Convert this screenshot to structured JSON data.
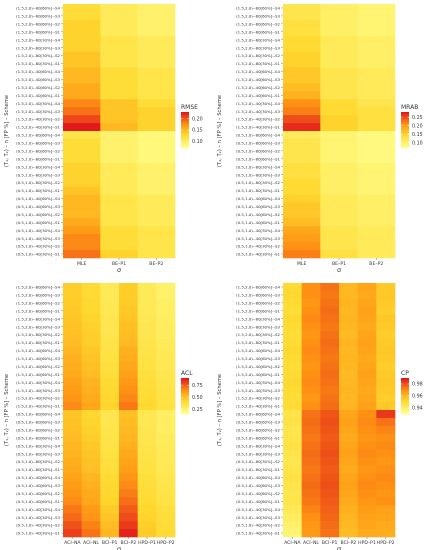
{
  "rows": [
    "(1.5,2.0)--80[60%]--S4",
    "(1.5,2.0)--80[60%]--S3",
    "(1.5,2.0)--80[60%]--S2",
    "(1.5,2.0)--80[60%]--S1",
    "(1.5,2.0)--80[30%]--S4",
    "(1.5,2.0)--80[30%]--S3",
    "(1.5,2.0)--80[30%]--S2",
    "(1.5,2.0)--80[30%]--S1",
    "(1.5,2.0)--40[60%]--S4",
    "(1.5,2.0)--40[60%]--S3",
    "(1.5,2.0)--40[60%]--S2",
    "(1.5,2.0)--40[60%]--S1",
    "(1.5,2.0)--40[30%]--S4",
    "(1.5,2.0)--40[30%]--S3",
    "(1.5,2.0)--40[30%]--S2",
    "(1.5,2.0)--40[30%]--S1",
    "(0.5,1.0)--80[60%]--S4",
    "(0.5,1.0)--80[60%]--S3",
    "(0.5,1.0)--80[60%]--S2",
    "(0.5,1.0)--80[60%]--S1",
    "(0.5,1.0)--80[30%]--S4",
    "(0.5,1.0)--80[30%]--S3",
    "(0.5,1.0)--80[30%]--S2",
    "(0.5,1.0)--80[30%]--S1",
    "(0.5,1.0)--40[60%]--S4",
    "(0.5,1.0)--40[60%]--S3",
    "(0.5,1.0)--40[60%]--S2",
    "(0.5,1.0)--40[60%]--S1",
    "(0.5,1.0)--40[30%]--S4",
    "(0.5,1.0)--40[30%]--S3",
    "(0.5,1.0)--40[30%]--S2",
    "(0.5,1.0)--40[30%]--S1"
  ],
  "chart_data": [
    {
      "type": "heatmap",
      "xlabel": "σ",
      "ylabel": "(T₁, T₂) – n [FP %] – Scheme",
      "categories": [
        "MLE",
        "BE–P1",
        "BE–P2"
      ],
      "legend": {
        "title": "RMSE",
        "ticks": [
          0.1,
          0.15,
          0.2
        ],
        "range": [
          0.07,
          0.23
        ],
        "placement": "right"
      },
      "values": [
        [
          0.12,
          0.1,
          0.09
        ],
        [
          0.12,
          0.1,
          0.09
        ],
        [
          0.13,
          0.1,
          0.09
        ],
        [
          0.13,
          0.1,
          0.09
        ],
        [
          0.13,
          0.11,
          0.1
        ],
        [
          0.13,
          0.11,
          0.1
        ],
        [
          0.14,
          0.11,
          0.1
        ],
        [
          0.14,
          0.11,
          0.1
        ],
        [
          0.15,
          0.12,
          0.11
        ],
        [
          0.15,
          0.12,
          0.11
        ],
        [
          0.16,
          0.12,
          0.11
        ],
        [
          0.16,
          0.12,
          0.11
        ],
        [
          0.18,
          0.14,
          0.12
        ],
        [
          0.19,
          0.14,
          0.13
        ],
        [
          0.21,
          0.14,
          0.13
        ],
        [
          0.23,
          0.15,
          0.13
        ],
        [
          0.11,
          0.09,
          0.08
        ],
        [
          0.12,
          0.09,
          0.08
        ],
        [
          0.12,
          0.09,
          0.08
        ],
        [
          0.12,
          0.09,
          0.08
        ],
        [
          0.13,
          0.1,
          0.09
        ],
        [
          0.13,
          0.1,
          0.09
        ],
        [
          0.13,
          0.1,
          0.09
        ],
        [
          0.14,
          0.1,
          0.09
        ],
        [
          0.15,
          0.11,
          0.1
        ],
        [
          0.15,
          0.11,
          0.1
        ],
        [
          0.15,
          0.11,
          0.1
        ],
        [
          0.16,
          0.11,
          0.1
        ],
        [
          0.17,
          0.12,
          0.11
        ],
        [
          0.18,
          0.12,
          0.11
        ],
        [
          0.18,
          0.12,
          0.11
        ],
        [
          0.19,
          0.13,
          0.11
        ]
      ]
    },
    {
      "type": "heatmap",
      "xlabel": "σ",
      "ylabel": "(T₁, T₂) – n [FP %] – Scheme",
      "categories": [
        "MLE",
        "BE–P1",
        "BE–P2"
      ],
      "legend": {
        "title": "MRAB",
        "ticks": [
          0.1,
          0.15,
          0.2,
          0.25
        ],
        "range": [
          0.07,
          0.28
        ],
        "placement": "right"
      },
      "values": [
        [
          0.12,
          0.1,
          0.09
        ],
        [
          0.12,
          0.1,
          0.09
        ],
        [
          0.13,
          0.1,
          0.09
        ],
        [
          0.13,
          0.1,
          0.09
        ],
        [
          0.14,
          0.11,
          0.1
        ],
        [
          0.14,
          0.11,
          0.1
        ],
        [
          0.15,
          0.11,
          0.1
        ],
        [
          0.15,
          0.11,
          0.1
        ],
        [
          0.16,
          0.12,
          0.11
        ],
        [
          0.16,
          0.12,
          0.11
        ],
        [
          0.17,
          0.12,
          0.11
        ],
        [
          0.18,
          0.12,
          0.11
        ],
        [
          0.21,
          0.14,
          0.12
        ],
        [
          0.22,
          0.14,
          0.13
        ],
        [
          0.25,
          0.15,
          0.13
        ],
        [
          0.27,
          0.15,
          0.13
        ],
        [
          0.11,
          0.09,
          0.08
        ],
        [
          0.12,
          0.09,
          0.08
        ],
        [
          0.12,
          0.09,
          0.08
        ],
        [
          0.12,
          0.09,
          0.08
        ],
        [
          0.13,
          0.1,
          0.09
        ],
        [
          0.13,
          0.1,
          0.09
        ],
        [
          0.14,
          0.1,
          0.09
        ],
        [
          0.14,
          0.1,
          0.09
        ],
        [
          0.15,
          0.11,
          0.1
        ],
        [
          0.16,
          0.11,
          0.1
        ],
        [
          0.16,
          0.11,
          0.1
        ],
        [
          0.17,
          0.11,
          0.1
        ],
        [
          0.19,
          0.12,
          0.11
        ],
        [
          0.2,
          0.12,
          0.11
        ],
        [
          0.21,
          0.12,
          0.11
        ],
        [
          0.22,
          0.13,
          0.11
        ]
      ]
    },
    {
      "type": "heatmap",
      "xlabel": "σ",
      "ylabel": "(T₁, T₂) – n [FP %] – Scheme",
      "categories": [
        "ACI–NA",
        "ACI–NL",
        "BCI–P1",
        "BCI–P2",
        "HPD–P1",
        "HPD–P2"
      ],
      "legend": {
        "title": "ACL",
        "ticks": [
          0.25,
          0.5,
          0.75
        ],
        "range": [
          0.15,
          0.9
        ],
        "placement": "right"
      },
      "values": [
        [
          0.45,
          0.4,
          0.3,
          0.45,
          0.3,
          0.25
        ],
        [
          0.45,
          0.4,
          0.3,
          0.45,
          0.3,
          0.25
        ],
        [
          0.46,
          0.41,
          0.31,
          0.46,
          0.3,
          0.26
        ],
        [
          0.47,
          0.41,
          0.31,
          0.47,
          0.3,
          0.26
        ],
        [
          0.48,
          0.43,
          0.32,
          0.48,
          0.31,
          0.27
        ],
        [
          0.49,
          0.44,
          0.32,
          0.5,
          0.32,
          0.28
        ],
        [
          0.5,
          0.45,
          0.33,
          0.51,
          0.32,
          0.28
        ],
        [
          0.51,
          0.45,
          0.34,
          0.52,
          0.33,
          0.29
        ],
        [
          0.53,
          0.47,
          0.35,
          0.55,
          0.34,
          0.3
        ],
        [
          0.55,
          0.48,
          0.36,
          0.56,
          0.35,
          0.31
        ],
        [
          0.56,
          0.5,
          0.37,
          0.58,
          0.36,
          0.31
        ],
        [
          0.57,
          0.51,
          0.38,
          0.6,
          0.37,
          0.32
        ],
        [
          0.6,
          0.54,
          0.4,
          0.63,
          0.38,
          0.33
        ],
        [
          0.62,
          0.55,
          0.41,
          0.65,
          0.39,
          0.34
        ],
        [
          0.64,
          0.57,
          0.42,
          0.67,
          0.4,
          0.35
        ],
        [
          0.66,
          0.58,
          0.43,
          0.7,
          0.41,
          0.36
        ],
        [
          0.48,
          0.42,
          0.32,
          0.5,
          0.31,
          0.26
        ],
        [
          0.49,
          0.43,
          0.32,
          0.51,
          0.31,
          0.27
        ],
        [
          0.5,
          0.44,
          0.33,
          0.52,
          0.32,
          0.27
        ],
        [
          0.51,
          0.45,
          0.34,
          0.53,
          0.32,
          0.28
        ],
        [
          0.53,
          0.47,
          0.35,
          0.55,
          0.33,
          0.29
        ],
        [
          0.54,
          0.48,
          0.36,
          0.57,
          0.34,
          0.3
        ],
        [
          0.56,
          0.49,
          0.37,
          0.59,
          0.35,
          0.3
        ],
        [
          0.57,
          0.5,
          0.38,
          0.61,
          0.36,
          0.31
        ],
        [
          0.6,
          0.53,
          0.4,
          0.64,
          0.37,
          0.32
        ],
        [
          0.62,
          0.55,
          0.41,
          0.66,
          0.38,
          0.33
        ],
        [
          0.64,
          0.57,
          0.42,
          0.69,
          0.39,
          0.34
        ],
        [
          0.66,
          0.58,
          0.43,
          0.72,
          0.4,
          0.35
        ],
        [
          0.7,
          0.62,
          0.46,
          0.76,
          0.42,
          0.37
        ],
        [
          0.73,
          0.64,
          0.48,
          0.79,
          0.43,
          0.38
        ],
        [
          0.78,
          0.68,
          0.51,
          0.83,
          0.45,
          0.39
        ],
        [
          0.82,
          0.71,
          0.53,
          0.88,
          0.46,
          0.4
        ]
      ]
    },
    {
      "type": "heatmap",
      "xlabel": "σ",
      "ylabel": "(T₁, T₂) – n [FP %] – Scheme",
      "categories": [
        "ACI–NA",
        "ACI–NL",
        "BCI–P1",
        "BCI–P2",
        "HPD–P1",
        "HPD–P2"
      ],
      "legend": {
        "title": "CP",
        "ticks": [
          0.94,
          0.96,
          0.98
        ],
        "range": [
          0.93,
          0.99
        ],
        "placement": "right"
      },
      "values": [
        [
          0.95,
          0.97,
          0.975,
          0.96,
          0.965,
          0.955
        ],
        [
          0.951,
          0.97,
          0.974,
          0.96,
          0.964,
          0.956
        ],
        [
          0.95,
          0.969,
          0.975,
          0.961,
          0.965,
          0.955
        ],
        [
          0.949,
          0.97,
          0.976,
          0.96,
          0.966,
          0.954
        ],
        [
          0.951,
          0.971,
          0.975,
          0.961,
          0.965,
          0.956
        ],
        [
          0.95,
          0.97,
          0.974,
          0.96,
          0.964,
          0.955
        ],
        [
          0.949,
          0.969,
          0.975,
          0.959,
          0.965,
          0.954
        ],
        [
          0.95,
          0.97,
          0.976,
          0.961,
          0.966,
          0.955
        ],
        [
          0.951,
          0.971,
          0.975,
          0.96,
          0.965,
          0.956
        ],
        [
          0.95,
          0.97,
          0.974,
          0.961,
          0.964,
          0.955
        ],
        [
          0.949,
          0.969,
          0.975,
          0.96,
          0.965,
          0.954
        ],
        [
          0.95,
          0.97,
          0.976,
          0.959,
          0.966,
          0.955
        ],
        [
          0.951,
          0.971,
          0.975,
          0.96,
          0.965,
          0.956
        ],
        [
          0.95,
          0.97,
          0.974,
          0.961,
          0.964,
          0.955
        ],
        [
          0.949,
          0.969,
          0.975,
          0.96,
          0.965,
          0.954
        ],
        [
          0.95,
          0.97,
          0.976,
          0.961,
          0.966,
          0.955
        ],
        [
          0.945,
          0.975,
          0.98,
          0.965,
          0.97,
          0.985
        ],
        [
          0.946,
          0.976,
          0.981,
          0.966,
          0.971,
          0.975
        ],
        [
          0.944,
          0.975,
          0.98,
          0.965,
          0.97,
          0.972
        ],
        [
          0.945,
          0.974,
          0.979,
          0.964,
          0.969,
          0.97
        ],
        [
          0.946,
          0.975,
          0.98,
          0.965,
          0.97,
          0.971
        ],
        [
          0.945,
          0.976,
          0.981,
          0.966,
          0.971,
          0.97
        ],
        [
          0.944,
          0.975,
          0.98,
          0.965,
          0.97,
          0.969
        ],
        [
          0.945,
          0.974,
          0.979,
          0.964,
          0.969,
          0.97
        ],
        [
          0.946,
          0.975,
          0.98,
          0.965,
          0.97,
          0.971
        ],
        [
          0.945,
          0.976,
          0.981,
          0.966,
          0.971,
          0.97
        ],
        [
          0.944,
          0.975,
          0.98,
          0.965,
          0.97,
          0.969
        ],
        [
          0.945,
          0.974,
          0.979,
          0.964,
          0.969,
          0.97
        ],
        [
          0.942,
          0.972,
          0.978,
          0.962,
          0.967,
          0.966
        ],
        [
          0.94,
          0.97,
          0.977,
          0.961,
          0.966,
          0.965
        ],
        [
          0.938,
          0.969,
          0.976,
          0.96,
          0.965,
          0.964
        ],
        [
          0.936,
          0.968,
          0.975,
          0.959,
          0.964,
          0.963
        ]
      ]
    }
  ]
}
